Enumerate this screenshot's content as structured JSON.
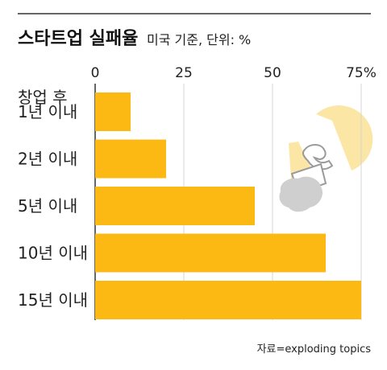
{
  "chart_data": {
    "type": "bar",
    "orientation": "horizontal",
    "title": "스타트업 실패율",
    "subtitle": "미국 기준, 단위: %",
    "category_header": "창업 후",
    "categories": [
      "1년 이내",
      "2년 이내",
      "5년 이내",
      "10년 이내",
      "15년 이내"
    ],
    "values": [
      10,
      20,
      45,
      65,
      75
    ],
    "xlim": [
      0,
      75
    ],
    "x_ticks": [
      0,
      25,
      50,
      75
    ],
    "x_tick_labels": [
      "0",
      "25",
      "50",
      "75%"
    ],
    "grid": true,
    "bar_color": "#FDB913",
    "source": "자료=exploding topics"
  }
}
